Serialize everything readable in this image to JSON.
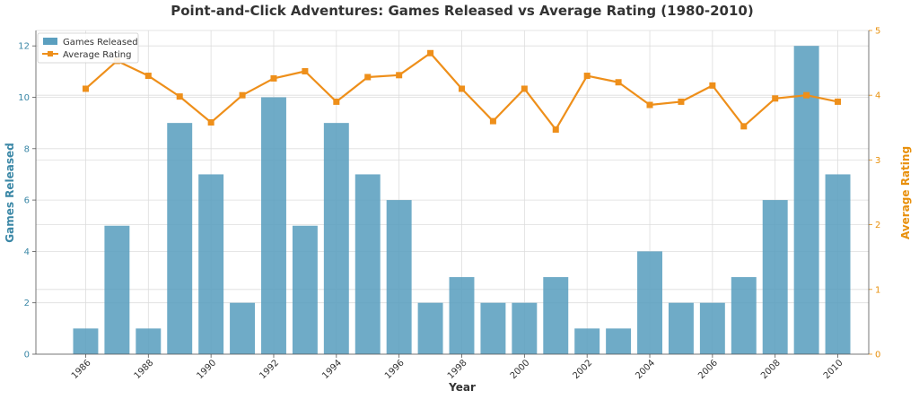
{
  "chart_data": {
    "type": "bar+line",
    "title": "Point-and-Click Adventures: Games Released vs Average Rating (1980-2010)",
    "xlabel": "Year",
    "ylabel_left": "Games Released",
    "ylabel_right": "Average Rating",
    "x": [
      1986,
      1987,
      1988,
      1989,
      1990,
      1991,
      1992,
      1993,
      1994,
      1995,
      1996,
      1997,
      1998,
      1999,
      2000,
      2001,
      2002,
      2003,
      2004,
      2005,
      2006,
      2007,
      2008,
      2009,
      2010
    ],
    "x_tick_labels": [
      "1986",
      "1988",
      "1990",
      "1992",
      "1994",
      "1996",
      "1998",
      "2000",
      "2002",
      "2004",
      "2006",
      "2008",
      "2010"
    ],
    "ylim_left": [
      0,
      12.6
    ],
    "ylim_right": [
      0,
      5
    ],
    "yticks_left": [
      "0",
      "2",
      "4",
      "6",
      "8",
      "10",
      "12"
    ],
    "yticks_right": [
      "0",
      "1",
      "2",
      "3",
      "4",
      "5"
    ],
    "grid": true,
    "legend_position": "top-left",
    "series": [
      {
        "name": "Games Released",
        "type": "bar",
        "axis": "left",
        "color": "#5b9fbf",
        "values": [
          1,
          5,
          1,
          9,
          7,
          2,
          10,
          5,
          9,
          7,
          6,
          2,
          3,
          2,
          2,
          3,
          1,
          1,
          4,
          2,
          2,
          3,
          6,
          12,
          7
        ]
      },
      {
        "name": "Average Rating",
        "type": "line",
        "axis": "right",
        "color": "#ee8f1a",
        "values": [
          4.1,
          4.53,
          4.3,
          3.98,
          3.58,
          4.0,
          4.26,
          4.37,
          3.9,
          4.28,
          4.31,
          4.65,
          4.1,
          3.6,
          4.1,
          3.47,
          4.3,
          4.2,
          3.85,
          3.9,
          4.15,
          3.52,
          3.95,
          4.0,
          3.9
        ]
      }
    ],
    "colors": {
      "left_axis": "#3a87a6",
      "right_axis": "#e8900c",
      "grid": "#dddddd"
    }
  }
}
